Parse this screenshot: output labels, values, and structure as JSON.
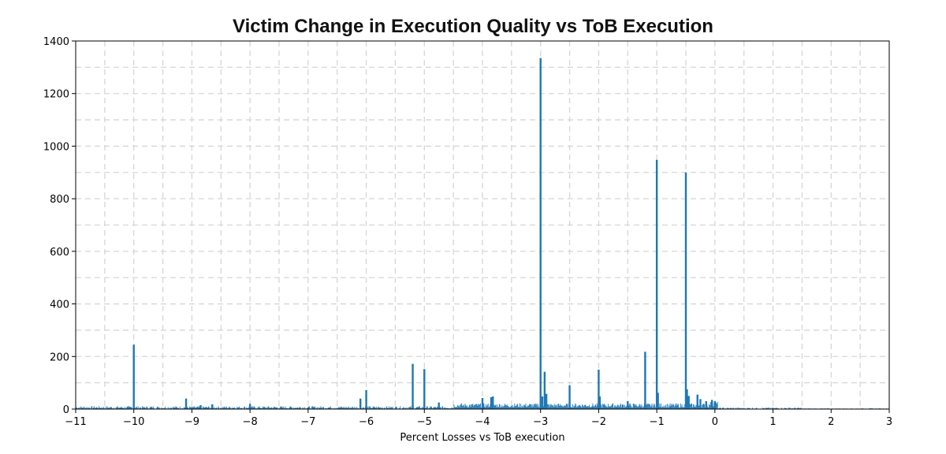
{
  "chart_data": {
    "type": "bar",
    "title": "Victim Change in Execution Quality vs ToB Execution",
    "xlabel": "Percent Losses vs ToB execution",
    "ylabel": "",
    "xlim": [
      -11,
      3
    ],
    "ylim": [
      0,
      1400
    ],
    "xticks": [
      -11,
      -10,
      -9,
      -8,
      -7,
      -6,
      -5,
      -4,
      -3,
      -2,
      -1,
      0,
      1,
      2,
      3
    ],
    "xtick_labels": [
      "−11",
      "−10",
      "−9",
      "−8",
      "−7",
      "−6",
      "−5",
      "−4",
      "−3",
      "−2",
      "−1",
      "0",
      "1",
      "2",
      "3"
    ],
    "yticks": [
      0,
      200,
      400,
      600,
      800,
      1000,
      1200,
      1400
    ],
    "ytick_labels": [
      "0",
      "200",
      "400",
      "600",
      "800",
      "1000",
      "1200",
      "1400"
    ],
    "grid": true,
    "color": "#1f77b4",
    "x": [
      -10.0,
      -9.1,
      -8.85,
      -8.65,
      -8.0,
      -6.1,
      -6.0,
      -5.2,
      -5.0,
      -4.75,
      -4.0,
      -3.85,
      -3.82,
      -3.0,
      -2.97,
      -2.93,
      -2.9,
      -2.5,
      -2.0,
      -1.98,
      -1.5,
      -1.2,
      -1.0,
      -0.98,
      -0.5,
      -0.48,
      -0.45,
      -0.3,
      -0.25,
      -0.15,
      -0.05,
      0.0
    ],
    "values": [
      245,
      40,
      15,
      18,
      20,
      40,
      72,
      172,
      152,
      25,
      42,
      45,
      48,
      1335,
      48,
      142,
      58,
      90,
      150,
      48,
      30,
      218,
      948,
      62,
      900,
      75,
      50,
      55,
      38,
      30,
      35,
      30
    ]
  }
}
